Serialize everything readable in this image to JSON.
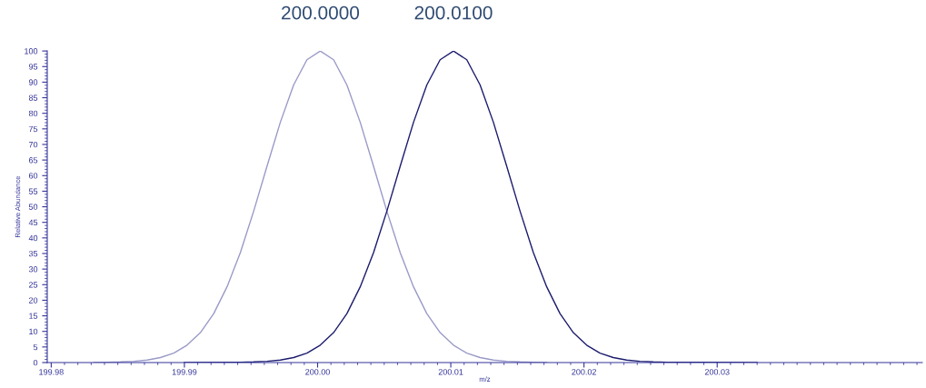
{
  "chart_data": {
    "type": "line",
    "xlabel": "m/z",
    "ylabel": "Relative Abundance",
    "xlim": [
      199.9797,
      200.0454
    ],
    "ylim": [
      0,
      100
    ],
    "xticks": [
      {
        "value": 199.98,
        "label": "199.98"
      },
      {
        "value": 199.99,
        "label": "199.99"
      },
      {
        "value": 200.0,
        "label": "200.00"
      },
      {
        "value": 200.01,
        "label": "200.01"
      },
      {
        "value": 200.02,
        "label": "200.02"
      },
      {
        "value": 200.03,
        "label": "200.03"
      }
    ],
    "yticks": [
      0,
      5,
      10,
      15,
      20,
      25,
      30,
      35,
      40,
      45,
      50,
      55,
      60,
      65,
      70,
      75,
      80,
      85,
      90,
      95,
      100
    ],
    "grid": false,
    "legend": false,
    "marker": "none",
    "line_style": "solid",
    "series": [
      {
        "color": "#9a9ac8",
        "x": [
          199.9832,
          199.9842,
          199.9852,
          199.9862,
          199.9872,
          199.9882,
          199.9892,
          199.9902,
          199.9912,
          199.9922,
          199.9932,
          199.9942,
          199.9952,
          199.9962,
          199.9972,
          199.9982,
          199.9992,
          200.0002,
          200.0012,
          200.0022,
          200.0032,
          200.0042,
          200.0052,
          200.0062,
          200.0072,
          200.0082,
          200.0092,
          200.0102,
          200.0112,
          200.0122,
          200.0132,
          200.0142,
          200.0152,
          200.0162,
          200.0172
        ],
        "values": [
          0,
          0.1,
          0.2,
          0.4,
          0.8,
          1.6,
          3.0,
          5.6,
          9.6,
          15.7,
          24.3,
          35.3,
          48.6,
          63.0,
          77.1,
          89.1,
          97.2,
          100,
          97.2,
          89.1,
          77.1,
          63.0,
          48.6,
          35.3,
          24.3,
          15.7,
          9.6,
          5.6,
          3.0,
          1.6,
          0.8,
          0.4,
          0.2,
          0.1,
          0
        ]
      },
      {
        "color": "#1c1c6e",
        "x": [
          199.99,
          199.9942,
          199.9952,
          199.9962,
          199.9972,
          199.9982,
          199.9992,
          200.0002,
          200.0012,
          200.0022,
          200.0032,
          200.0042,
          200.0052,
          200.0062,
          200.0072,
          200.0082,
          200.0092,
          200.0102,
          200.0112,
          200.0122,
          200.0132,
          200.0142,
          200.0152,
          200.0162,
          200.0172,
          200.0182,
          200.0192,
          200.0202,
          200.0212,
          200.0222,
          200.0232,
          200.0242,
          200.0252,
          200.0262,
          200.033
        ],
        "values": [
          0,
          0.1,
          0.2,
          0.4,
          0.8,
          1.6,
          3.0,
          5.6,
          9.6,
          15.7,
          24.3,
          35.3,
          48.6,
          63.0,
          77.1,
          89.1,
          97.2,
          100,
          97.2,
          89.1,
          77.1,
          63.0,
          48.6,
          35.3,
          24.3,
          15.7,
          9.6,
          5.6,
          3.0,
          1.6,
          0.8,
          0.4,
          0.2,
          0.1,
          0
        ]
      }
    ],
    "annotations": [
      {
        "text": "200.0000",
        "x": 200.0002,
        "y": 100
      },
      {
        "text": "200.0100",
        "x": 200.0102,
        "y": 100
      }
    ]
  }
}
